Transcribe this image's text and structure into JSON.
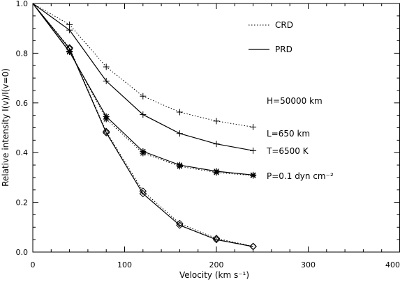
{
  "chart_data": {
    "type": "line",
    "xlabel": "Velocity (km s⁻¹)",
    "ylabel": "Relative intensity I(v)/I(v=0)",
    "xlim": [
      0,
      400
    ],
    "ylim": [
      0,
      1.0
    ],
    "xticks": [
      0,
      100,
      200,
      300,
      400
    ],
    "xtick_labels": [
      "0",
      "100",
      "200",
      "300",
      "400"
    ],
    "yticks": [
      0.0,
      0.2,
      0.4,
      0.6,
      0.8,
      1.0
    ],
    "ytick_labels": [
      "0.0",
      "0.2",
      "0.4",
      "0.6",
      "0.8",
      "1.0"
    ],
    "grid": false,
    "legend": {
      "placement": "top-right",
      "entries": [
        {
          "label": "CRD",
          "style": "dotted"
        },
        {
          "label": "PRD",
          "style": "solid"
        }
      ]
    },
    "annotations": [
      "H=50000 km",
      "L=650 km",
      "T=6500 K",
      "P=0.1 dyn cm⁻²"
    ],
    "x": [
      0,
      40,
      80,
      120,
      160,
      200,
      240
    ],
    "series": [
      {
        "style": "dotted",
        "marker": "plus",
        "values": [
          1.0,
          0.915,
          0.745,
          0.627,
          0.563,
          0.527,
          0.503
        ]
      },
      {
        "style": "solid",
        "marker": "plus",
        "values": [
          1.0,
          0.893,
          0.688,
          0.553,
          0.477,
          0.435,
          0.408
        ]
      },
      {
        "style": "dotted",
        "marker": "asterisk",
        "values": [
          1.0,
          0.808,
          0.535,
          0.398,
          0.345,
          0.32,
          0.308
        ]
      },
      {
        "style": "solid",
        "marker": "asterisk",
        "values": [
          1.0,
          0.805,
          0.545,
          0.405,
          0.35,
          0.325,
          0.31
        ]
      },
      {
        "style": "dotted",
        "marker": "diamond",
        "values": [
          1.0,
          0.822,
          0.485,
          0.245,
          0.115,
          0.055,
          0.023
        ]
      },
      {
        "style": "solid",
        "marker": "diamond",
        "values": [
          1.0,
          0.818,
          0.48,
          0.235,
          0.108,
          0.05,
          0.022
        ]
      }
    ]
  }
}
